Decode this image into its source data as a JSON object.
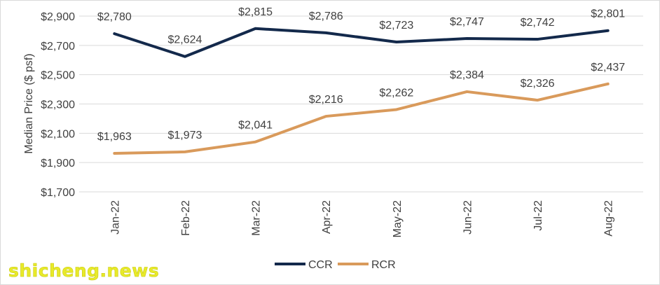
{
  "chart_data": {
    "type": "line",
    "title": "",
    "xlabel": "",
    "ylabel": "Median Price ($ psf)",
    "categories": [
      "Jan-22",
      "Feb-22",
      "Mar-22",
      "Apr-22",
      "May-22",
      "Jun-22",
      "Jul-22",
      "Aug-22"
    ],
    "ylim": [
      1700,
      2900
    ],
    "yticks": [
      1700,
      1900,
      2100,
      2300,
      2500,
      2700,
      2900
    ],
    "ytick_labels": [
      "$1,700",
      "$1,900",
      "$2,100",
      "$2,300",
      "$2,500",
      "$2,700",
      "$2,900"
    ],
    "grid": true,
    "legend": "bottom-center",
    "series": [
      {
        "name": "CCR",
        "color": "#13294b",
        "values": [
          2780,
          2624,
          2815,
          2786,
          2723,
          2747,
          2742,
          2801
        ],
        "labels": [
          "$2,780",
          "$2,624",
          "$2,815",
          "$2,786",
          "$2,723",
          "$2,747",
          "$2,742",
          "$2,801"
        ]
      },
      {
        "name": "RCR",
        "color": "#d99a5b",
        "values": [
          1963,
          1973,
          2041,
          2216,
          2262,
          2384,
          2326,
          2437
        ],
        "labels": [
          "$1,963",
          "$1,973",
          "$2,041",
          "$2,216",
          "$2,262",
          "$2,384",
          "$2,326",
          "$2,437"
        ]
      }
    ]
  },
  "watermark": "shicheng.news"
}
